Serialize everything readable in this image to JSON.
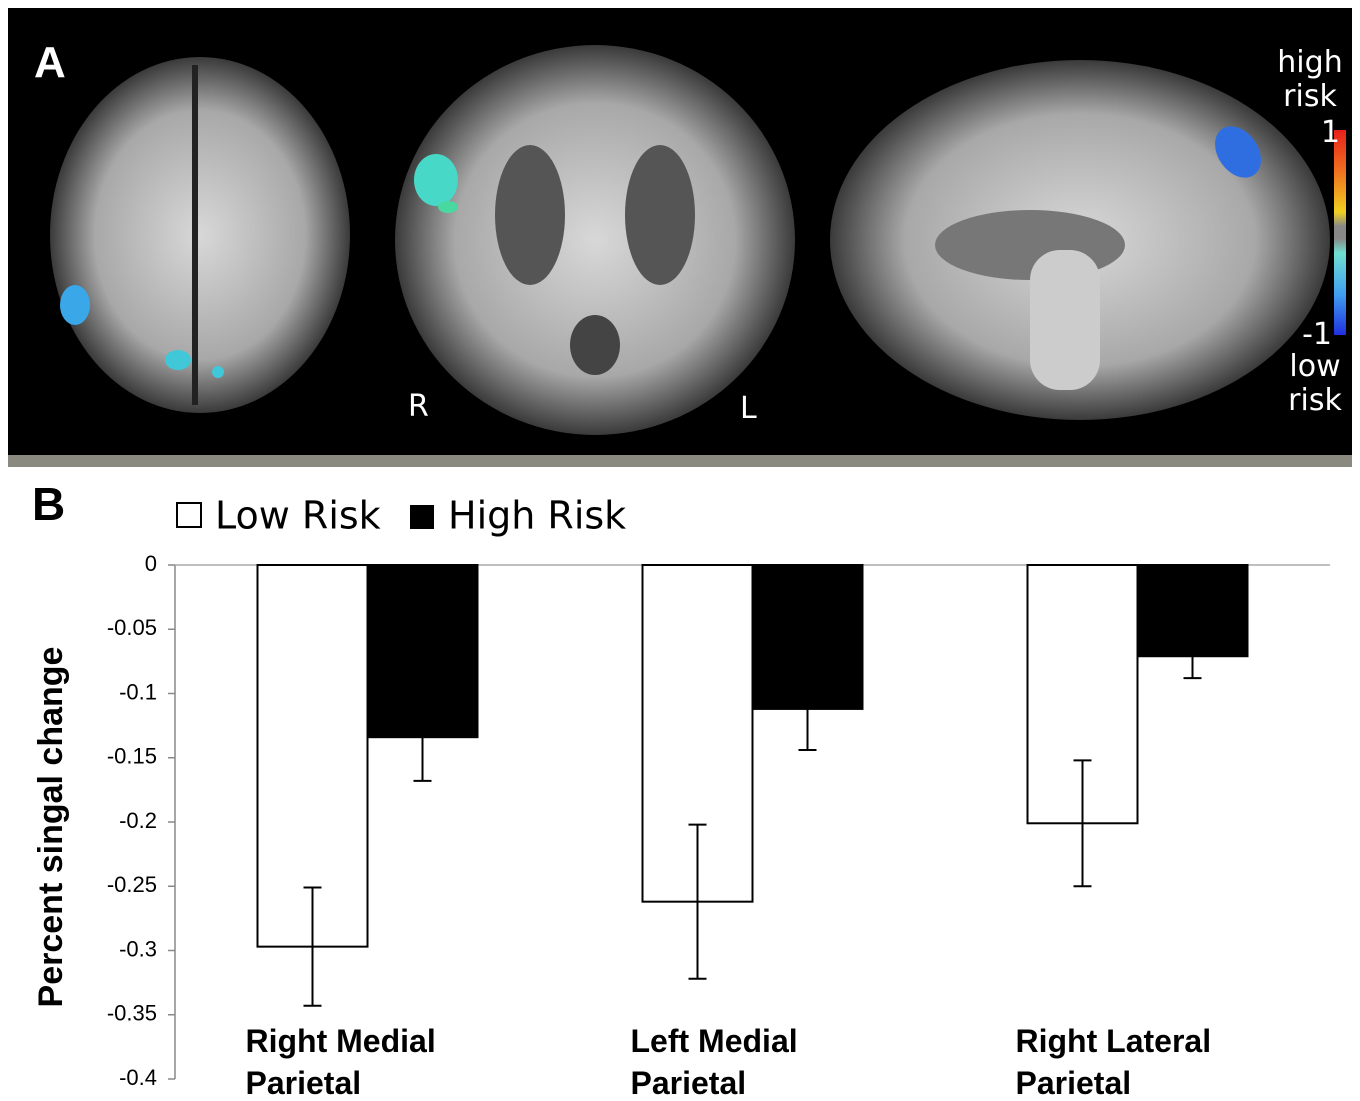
{
  "panel_a": {
    "label": "A",
    "colorbar": {
      "top_label": "high risk",
      "max": 1,
      "min": -1,
      "bottom_label": "low risk"
    },
    "orientation": [
      "R",
      "L"
    ]
  },
  "panel_b": {
    "label": "B"
  },
  "chart_data": {
    "type": "bar",
    "y_label": "Percent singal change",
    "categories": [
      "Right Medial Parietal",
      "Left Medial Parietal",
      "Right Lateral Parietal"
    ],
    "series": [
      {
        "name": "Low Risk",
        "color": "#ffffff",
        "values": [
          -0.297,
          -0.262,
          -0.201
        ],
        "errors": [
          0.046,
          0.06,
          0.049
        ]
      },
      {
        "name": "High Risk",
        "color": "#000000",
        "values": [
          -0.134,
          -0.112,
          -0.071
        ],
        "errors": [
          0.034,
          0.032,
          0.017
        ]
      }
    ],
    "ylim": [
      -0.4,
      0
    ],
    "yticks": [
      0,
      -0.05,
      -0.1,
      -0.15,
      -0.2,
      -0.25,
      -0.3,
      -0.35,
      -0.4
    ],
    "grid": false
  }
}
